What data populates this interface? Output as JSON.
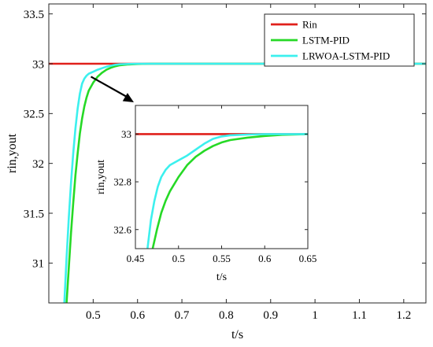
{
  "chart_data": [
    {
      "id": "main",
      "type": "line",
      "xlabel": "t/s",
      "ylabel": "rin,yout",
      "xlim": [
        0.4,
        1.25
      ],
      "ylim": [
        30.6,
        33.6
      ],
      "xticks": [
        0.5,
        0.6,
        0.7,
        0.8,
        0.9,
        1,
        1.1,
        1.2
      ],
      "xtick_labels": [
        "0.5",
        "0.6",
        "0.7",
        "0.8",
        "0.9",
        "1",
        "1.1",
        "1.2"
      ],
      "yticks": [
        31,
        31.5,
        32,
        32.5,
        33,
        33.5
      ],
      "ytick_labels": [
        "31",
        "31.5",
        "32",
        "32.5",
        "33",
        "33.5"
      ],
      "grid": false,
      "legend_position": "top-right",
      "series": [
        {
          "name": "Rin",
          "color": "#e0201b",
          "x": [
            0.4,
            1.25
          ],
          "y": [
            33,
            33
          ]
        },
        {
          "name": "LSTM-PID",
          "color": "#26d926",
          "x": [
            0.44,
            0.445,
            0.45,
            0.455,
            0.46,
            0.465,
            0.47,
            0.475,
            0.48,
            0.485,
            0.49,
            0.5,
            0.51,
            0.52,
            0.53,
            0.54,
            0.55,
            0.56,
            0.58,
            0.6,
            0.63,
            0.65,
            1.25
          ],
          "y": [
            30.6,
            30.95,
            31.3,
            31.6,
            31.88,
            32.1,
            32.3,
            32.45,
            32.57,
            32.66,
            32.73,
            32.81,
            32.87,
            32.91,
            32.94,
            32.96,
            32.975,
            32.985,
            32.993,
            32.997,
            33.0,
            33.0,
            33.0
          ]
        },
        {
          "name": "LRWOA-LSTM-PID",
          "color": "#3cf0ee",
          "x": [
            0.435,
            0.44,
            0.445,
            0.45,
            0.455,
            0.46,
            0.465,
            0.47,
            0.475,
            0.48,
            0.485,
            0.49,
            0.5,
            0.51,
            0.52,
            0.53,
            0.54,
            0.55,
            0.56,
            0.58,
            0.6,
            0.63,
            0.65,
            1.25
          ],
          "y": [
            30.6,
            31.05,
            31.45,
            31.8,
            32.1,
            32.35,
            32.55,
            32.7,
            32.8,
            32.85,
            32.88,
            32.9,
            32.92,
            32.94,
            32.955,
            32.97,
            32.98,
            32.99,
            32.995,
            32.998,
            33.0,
            33.0,
            33.0,
            33.0
          ]
        }
      ]
    },
    {
      "id": "inset",
      "type": "line",
      "xlabel": "t/s",
      "ylabel": "rin,yout",
      "xlim": [
        0.45,
        0.65
      ],
      "ylim": [
        32.52,
        33.12
      ],
      "xticks": [
        0.45,
        0.5,
        0.55,
        0.6,
        0.65
      ],
      "xtick_labels": [
        "0.45",
        "0.5",
        "0.55",
        "0.6",
        "0.65"
      ],
      "yticks": [
        32.6,
        32.8,
        33
      ],
      "ytick_labels": [
        "32.6",
        "32.8",
        "33"
      ],
      "grid": false,
      "series": [
        {
          "name": "Rin",
          "color": "#e0201b",
          "x": [
            0.45,
            0.65
          ],
          "y": [
            33,
            33
          ]
        },
        {
          "name": "LSTM-PID",
          "color": "#26d926",
          "x": [
            0.47,
            0.475,
            0.48,
            0.485,
            0.49,
            0.5,
            0.51,
            0.52,
            0.53,
            0.54,
            0.55,
            0.56,
            0.58,
            0.6,
            0.62,
            0.65
          ],
          "y": [
            32.52,
            32.6,
            32.67,
            32.72,
            32.76,
            32.82,
            32.87,
            32.905,
            32.93,
            32.95,
            32.965,
            32.975,
            32.985,
            32.992,
            32.997,
            33.0
          ]
        },
        {
          "name": "LRWOA-LSTM-PID",
          "color": "#3cf0ee",
          "x": [
            0.464,
            0.468,
            0.472,
            0.476,
            0.48,
            0.485,
            0.49,
            0.5,
            0.51,
            0.52,
            0.53,
            0.54,
            0.55,
            0.56,
            0.58,
            0.6,
            0.65
          ],
          "y": [
            32.52,
            32.64,
            32.72,
            32.78,
            32.82,
            32.85,
            32.87,
            32.89,
            32.91,
            32.935,
            32.96,
            32.98,
            32.99,
            32.995,
            32.998,
            33.0,
            33.0
          ]
        }
      ]
    }
  ]
}
